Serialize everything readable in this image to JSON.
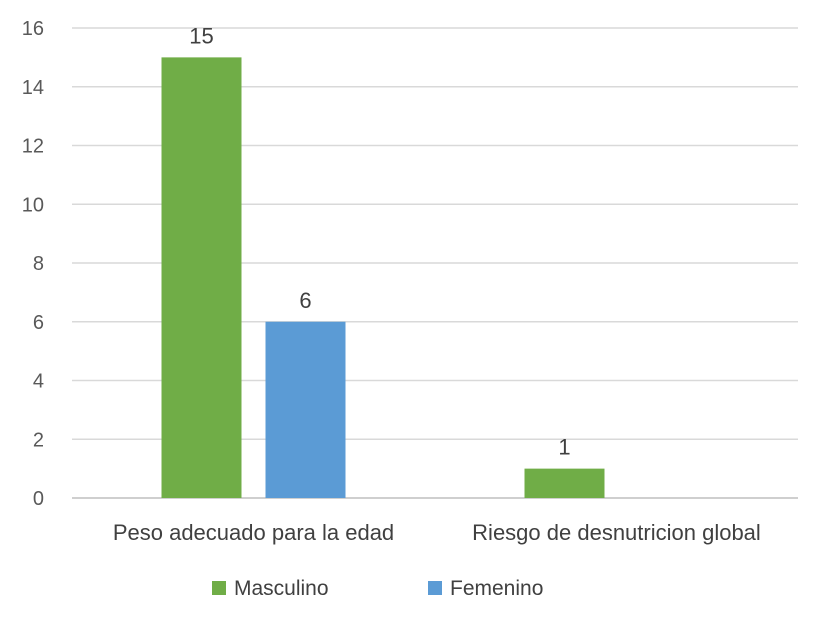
{
  "chart_data": {
    "type": "bar",
    "categories": [
      "Peso adecuado para la edad",
      "Riesgo de desnutricion global"
    ],
    "series": [
      {
        "name": "Masculino",
        "values": [
          15,
          1
        ],
        "color": "#70ad47"
      },
      {
        "name": "Femenino",
        "values": [
          6,
          0
        ],
        "color": "#5b9bd5"
      }
    ],
    "data_labels": [
      {
        "series": "Masculino",
        "category": "Peso adecuado para la edad",
        "text": "15"
      },
      {
        "series": "Femenino",
        "category": "Peso adecuado para la edad",
        "text": "6"
      },
      {
        "series": "Masculino",
        "category": "Riesgo de desnutricion global",
        "text": "1"
      }
    ],
    "title": "",
    "xlabel": "",
    "ylabel": "",
    "ylim": [
      0,
      16
    ],
    "yticks": [
      0,
      2,
      4,
      6,
      8,
      10,
      12,
      14,
      16
    ],
    "grid": true,
    "legend": "bottom"
  }
}
